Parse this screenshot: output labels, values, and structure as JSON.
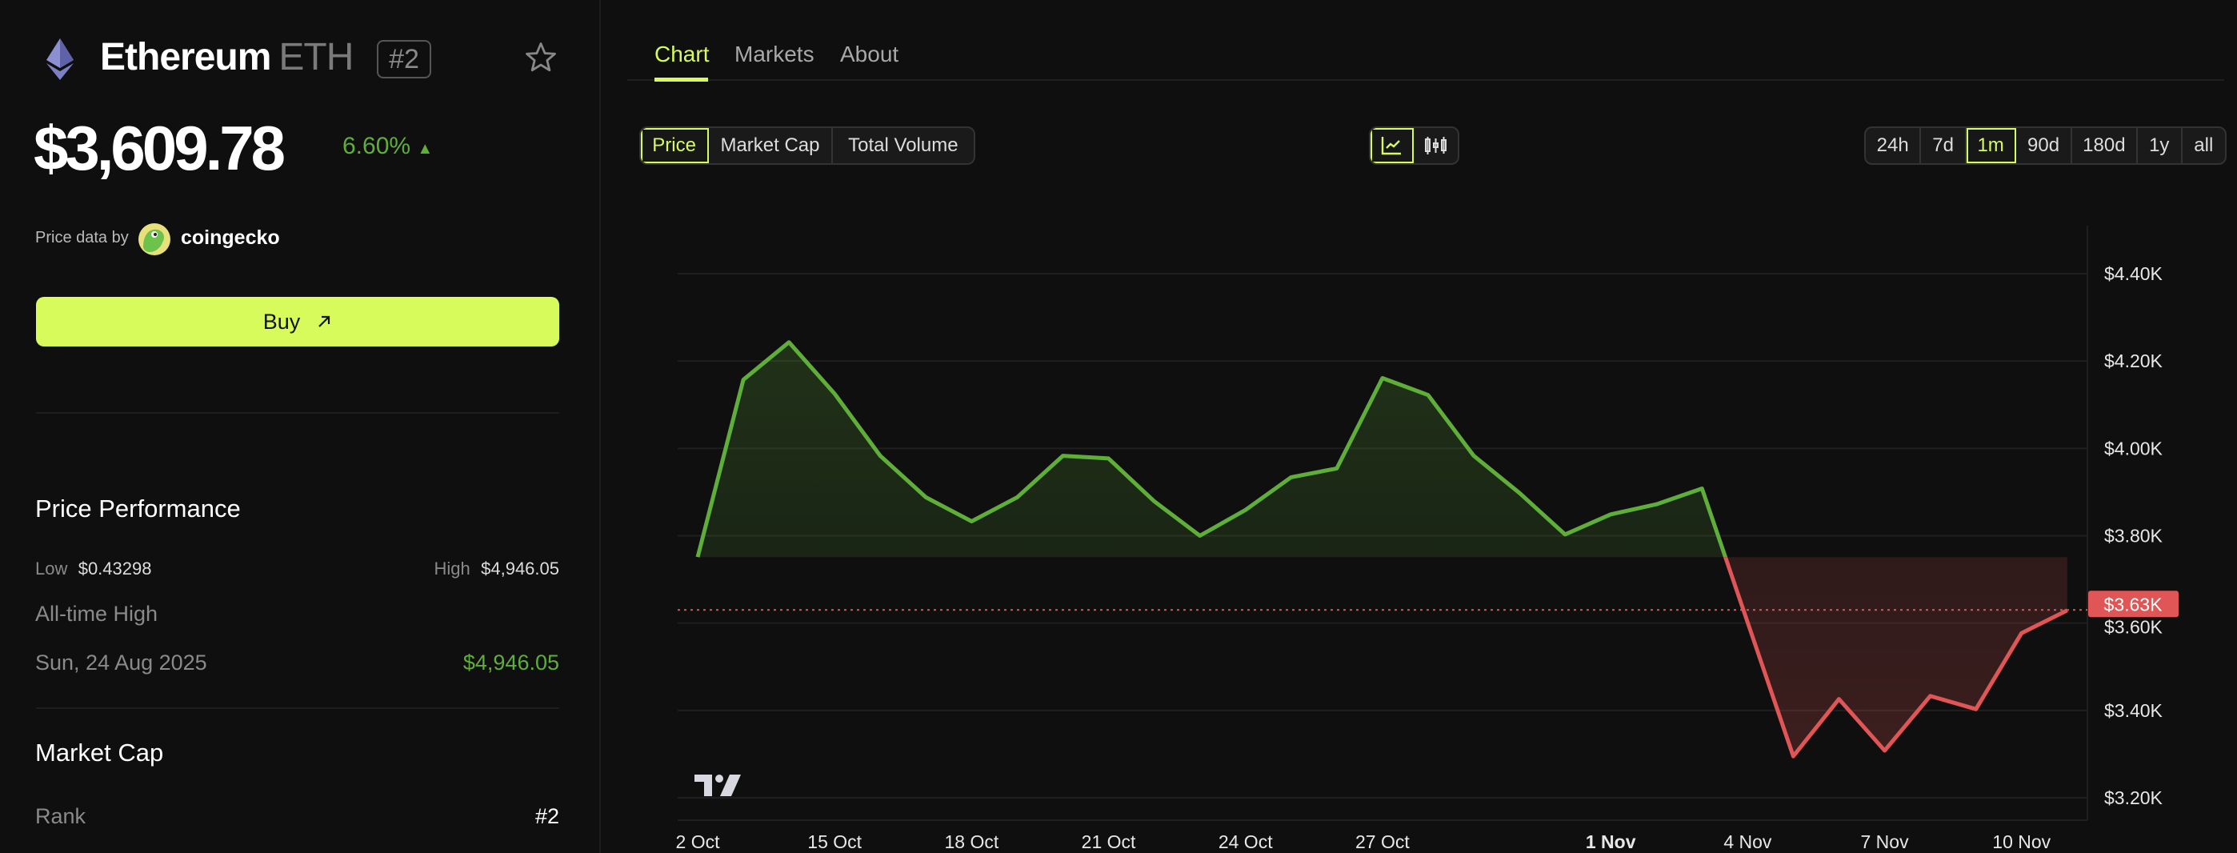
{
  "coin": {
    "name": "Ethereum",
    "symbol": "ETH",
    "rank_badge": "#2",
    "icon": "ethereum-icon",
    "favorite_icon": "star-icon"
  },
  "price": {
    "value": "$3,609.78",
    "change": "6.60%",
    "change_direction": "up",
    "change_arrow": "▲"
  },
  "source": {
    "label": "Price data by",
    "provider": "coingecko"
  },
  "buy": {
    "label": "Buy",
    "icon": "arrow-up-right-icon"
  },
  "performance": {
    "title": "Price Performance",
    "low_label": "Low",
    "low_value": "$0.43298",
    "high_label": "High",
    "high_value": "$4,946.05",
    "ath_label": "All-time High",
    "ath_date": "Sun, 24 Aug 2025",
    "ath_value": "$4,946.05"
  },
  "market_cap": {
    "title": "Market Cap",
    "rank_label": "Rank",
    "rank_value": "#2"
  },
  "tabs": [
    {
      "label": "Chart",
      "active": true
    },
    {
      "label": "Markets",
      "active": false
    },
    {
      "label": "About",
      "active": false
    }
  ],
  "metric_toggle": [
    {
      "label": "Price",
      "active": true
    },
    {
      "label": "Market Cap",
      "active": false
    },
    {
      "label": "Total Volume",
      "active": false
    }
  ],
  "chart_type_toggle": [
    {
      "icon": "line-chart-icon",
      "active": true
    },
    {
      "icon": "candlestick-chart-icon",
      "active": false
    }
  ],
  "ranges": [
    {
      "label": "24h"
    },
    {
      "label": "7d"
    },
    {
      "label": "1m",
      "active": true
    },
    {
      "label": "90d"
    },
    {
      "label": "180d"
    },
    {
      "label": "1y"
    },
    {
      "label": "all"
    }
  ],
  "colors": {
    "accent": "#d6fb5b",
    "up": "#5fae3a",
    "down": "#e05555",
    "background": "#0f0f0f"
  },
  "chart_data": {
    "type": "area",
    "x": [
      "12 Oct",
      "13 Oct",
      "14 Oct",
      "15 Oct",
      "16 Oct",
      "17 Oct",
      "18 Oct",
      "19 Oct",
      "20 Oct",
      "21 Oct",
      "22 Oct",
      "23 Oct",
      "24 Oct",
      "25 Oct",
      "26 Oct",
      "27 Oct",
      "28 Oct",
      "29 Oct",
      "30 Oct",
      "31 Oct",
      "1 Nov",
      "2 Nov",
      "3 Nov",
      "5 Nov",
      "6 Nov",
      "7 Nov",
      "8 Nov",
      "9 Nov",
      "10 Nov",
      "11 Nov"
    ],
    "values": [
      3751,
      4157,
      4243,
      4125,
      3983,
      3888,
      3833,
      3888,
      3983,
      3977,
      3879,
      3800,
      3859,
      3934,
      3954,
      4161,
      4122,
      3983,
      3898,
      3803,
      3849,
      3872,
      3908,
      3295,
      3426,
      3308,
      3433,
      3403,
      3577,
      3629
    ],
    "baseline": 3751,
    "ylim": [
      3150,
      4510
    ],
    "y_ticks": [
      {
        "value": 4400,
        "label": "$4.40K"
      },
      {
        "value": 4200,
        "label": "$4.20K"
      },
      {
        "value": 4000,
        "label": "$4.00K"
      },
      {
        "value": 3800,
        "label": "$3.80K"
      },
      {
        "value": 3600,
        "label": "$3.60K"
      },
      {
        "value": 3400,
        "label": "$3.40K"
      },
      {
        "value": 3200,
        "label": "$3.20K"
      }
    ],
    "x_ticks": [
      {
        "label": "2 Oct",
        "at": "12 Oct"
      },
      {
        "label": "15 Oct"
      },
      {
        "label": "18 Oct"
      },
      {
        "label": "21 Oct"
      },
      {
        "label": "24 Oct"
      },
      {
        "label": "27 Oct"
      },
      {
        "label": "1 Nov",
        "bold": true
      },
      {
        "label": "4 Nov"
      },
      {
        "label": "7 Nov"
      },
      {
        "label": "10 Nov"
      }
    ],
    "current_price": {
      "value": 3630,
      "label": "$3.63K"
    },
    "grid": true,
    "watermark": "TradingView"
  }
}
